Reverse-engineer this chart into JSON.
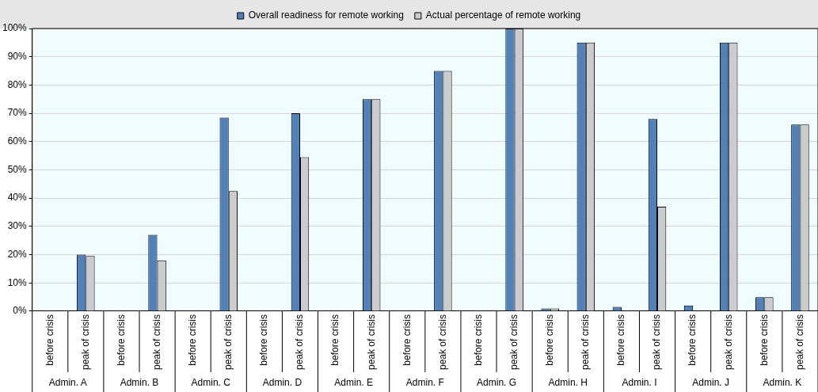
{
  "chart_data": {
    "type": "bar",
    "categories": [
      "before crisis",
      "peak of crisis",
      "before crisis",
      "peak of crisis",
      "before crisis",
      "peak of crisis",
      "before crisis",
      "peak of crisis",
      "before crisis",
      "peak of crisis",
      "before crisis",
      "peak of crisis",
      "before crisis",
      "peak of crisis",
      "before crisis",
      "peak of crisis",
      "before crisis",
      "peak of crisis",
      "before crisis",
      "peak of crisis",
      "before crisis",
      "peak of crisis"
    ],
    "series": [
      {
        "name": "Overall readiness for remote working",
        "color": "#4f81bd",
        "values": [
          0,
          20,
          0,
          27,
          0,
          68.5,
          0,
          70,
          0,
          75,
          0,
          85,
          0,
          100,
          1,
          95,
          1.5,
          68,
          2,
          95,
          5,
          66
        ]
      },
      {
        "name": "Actual percentage of remote working",
        "color": "#cccccc",
        "values": [
          0,
          19.5,
          0,
          18,
          0,
          42.5,
          0,
          54.5,
          0,
          75,
          0,
          85,
          0,
          100,
          1,
          95,
          0,
          37,
          0,
          95,
          5,
          66
        ]
      }
    ],
    "annotations": [
      "Admin. A",
      "Admin. B",
      "Admin. C",
      "Admin. D",
      "Admin. E",
      "Admin. F",
      "Admin. G",
      "Admin. H",
      "Admin. I",
      "Admin. J",
      "Admin. K"
    ],
    "ylim": [
      0,
      100
    ],
    "yticks": [
      {
        "value": 0,
        "label": "0%"
      },
      {
        "value": 10,
        "label": "10%"
      },
      {
        "value": 20,
        "label": "20%"
      },
      {
        "value": 30,
        "label": "30%"
      },
      {
        "value": 40,
        "label": "40%"
      },
      {
        "value": 50,
        "label": "50%"
      },
      {
        "value": 60,
        "label": "60%"
      },
      {
        "value": 70,
        "label": "70%"
      },
      {
        "value": 80,
        "label": "80%"
      },
      {
        "value": 90,
        "label": "90%"
      },
      {
        "value": 100,
        "label": "100%"
      }
    ],
    "grid": "y",
    "legend": "top"
  }
}
